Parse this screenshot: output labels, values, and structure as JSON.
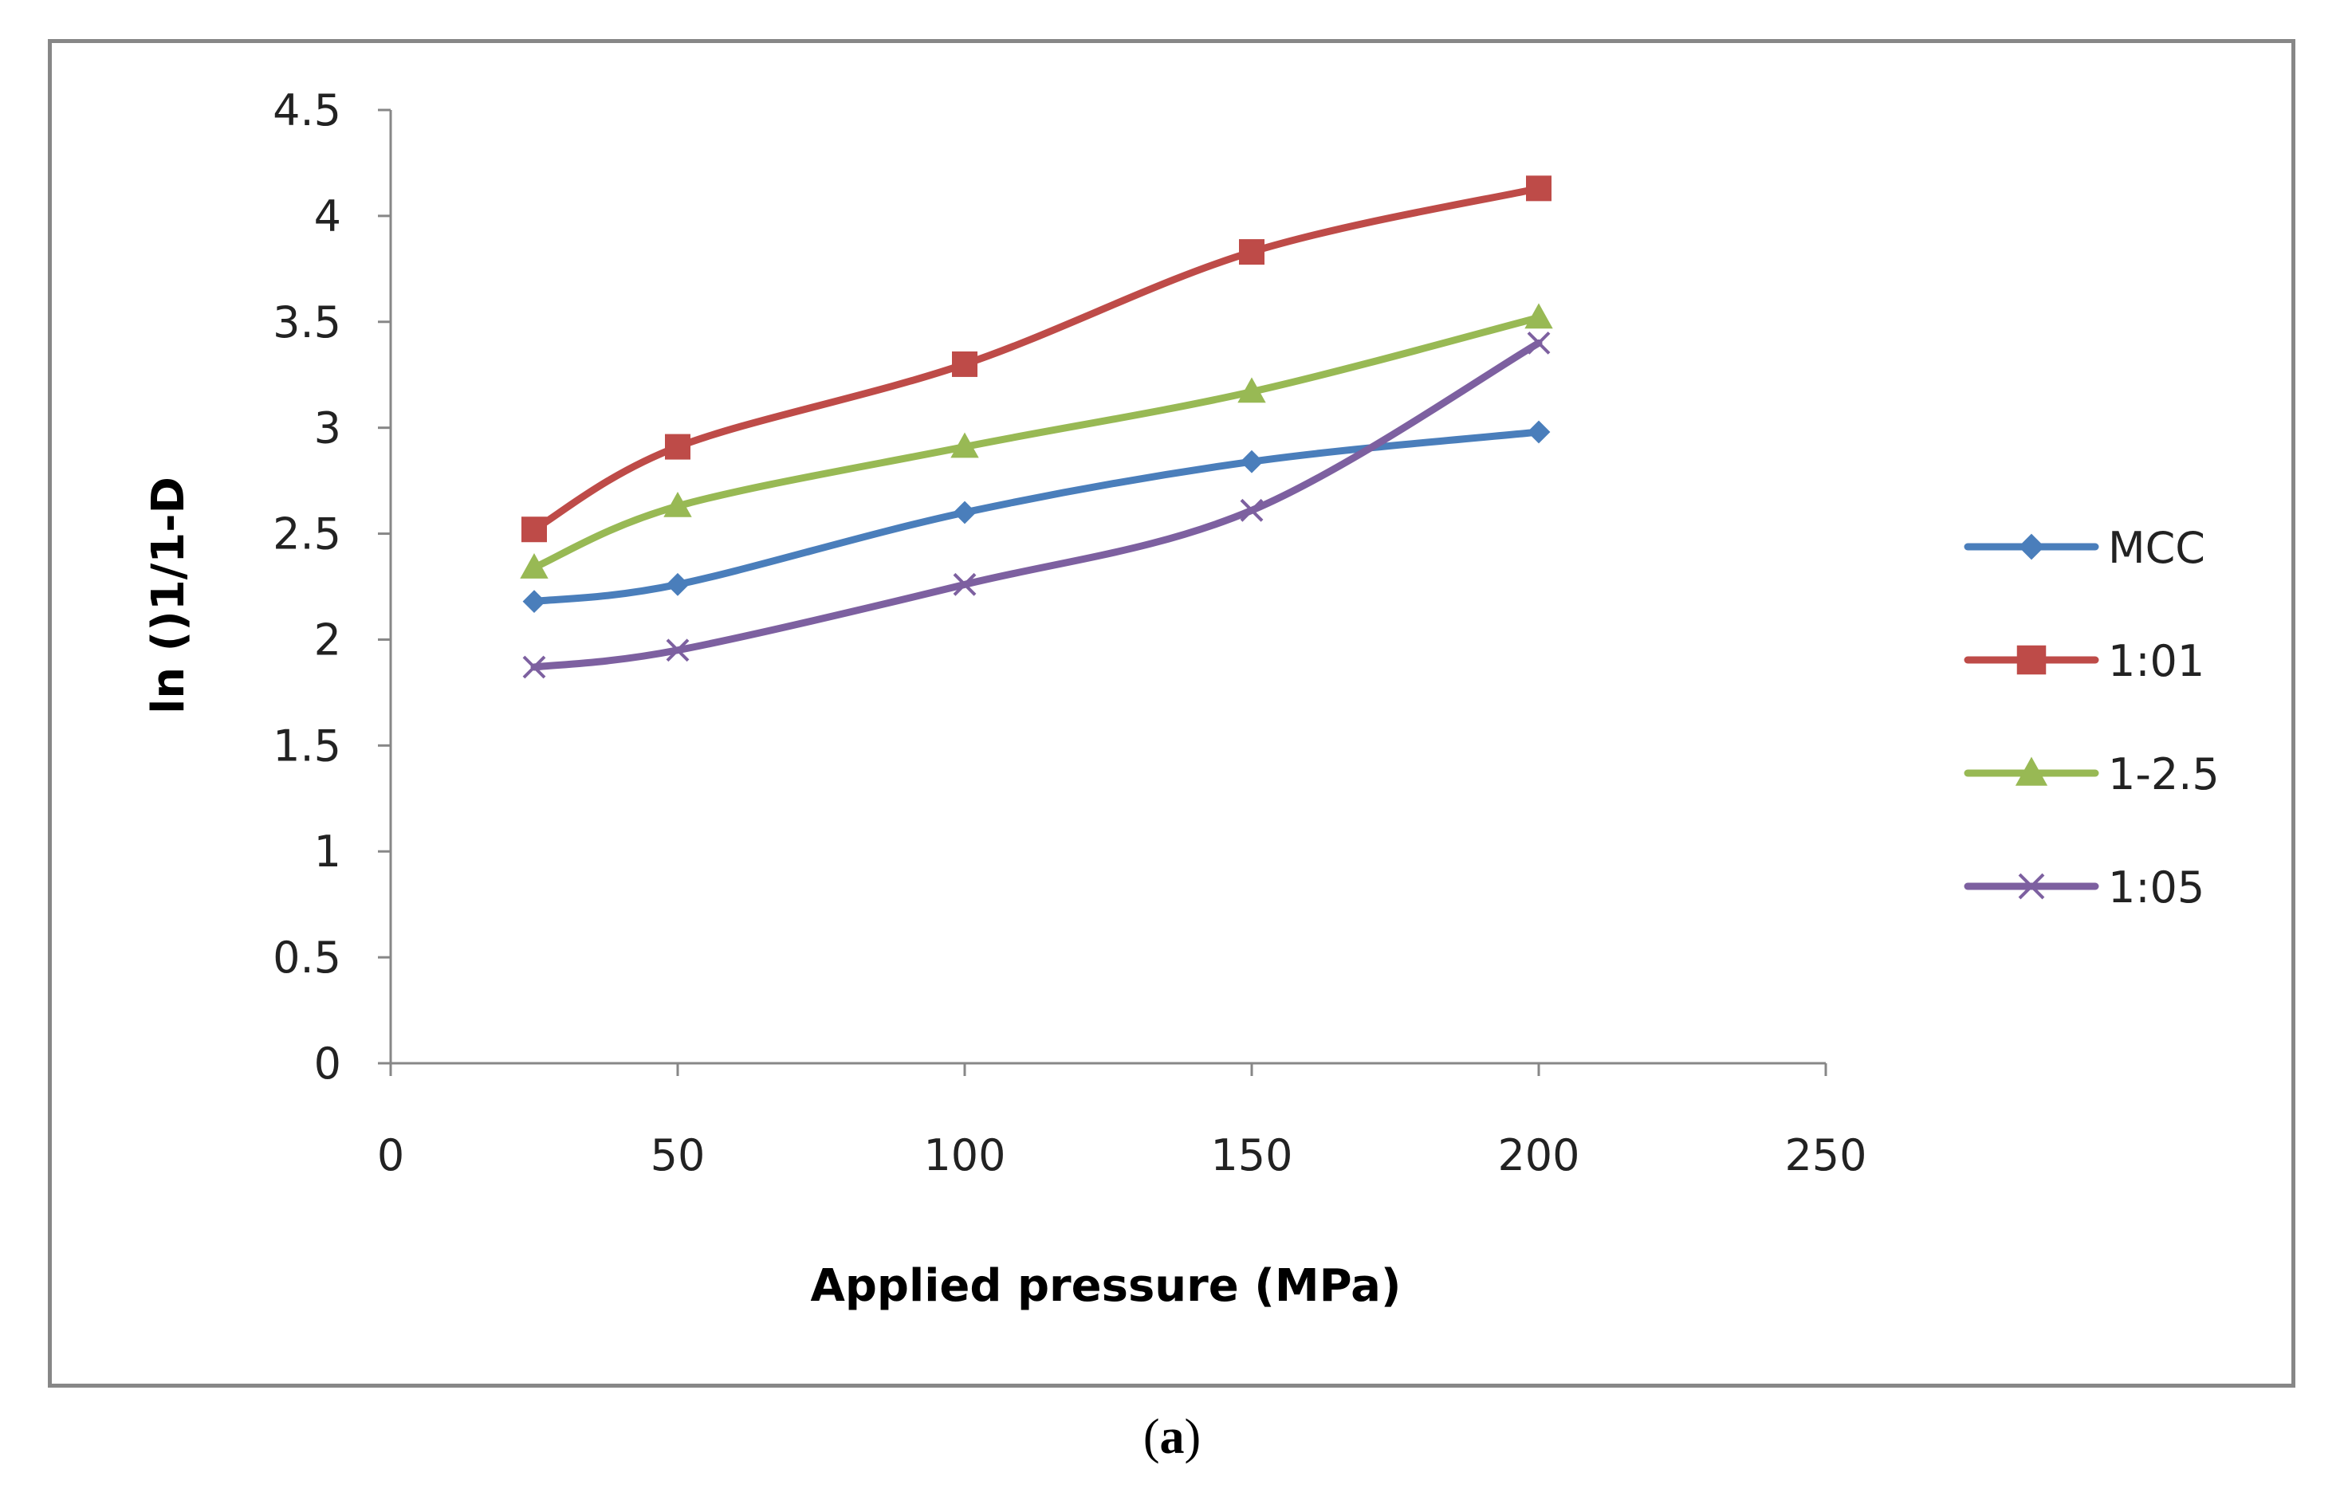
{
  "chart_data": {
    "type": "line",
    "title": "",
    "xlabel": "Applied pressure (MPa)",
    "ylabel": "ln ()1/1-D",
    "xlim": [
      0,
      250
    ],
    "ylim": [
      0,
      4.5
    ],
    "x_ticks": [
      "0",
      "50",
      "100",
      "150",
      "200",
      "250"
    ],
    "y_ticks": [
      "0",
      "0.5",
      "1",
      "1.5",
      "2",
      "2.5",
      "3",
      "3.5",
      "4",
      "4.5"
    ],
    "x": [
      25,
      50,
      100,
      150,
      200
    ],
    "legend_position": "right",
    "grid": false,
    "series": [
      {
        "name": "MCC",
        "color": "#4A7EBB",
        "marker": "diamond",
        "values": [
          2.18,
          2.26,
          2.6,
          2.84,
          2.98
        ]
      },
      {
        "name": "1:01",
        "color": "#BE4B48",
        "marker": "square",
        "values": [
          2.52,
          2.91,
          3.3,
          3.83,
          4.13
        ]
      },
      {
        "name": "1-2.5",
        "color": "#98B954",
        "marker": "triangle",
        "values": [
          2.34,
          2.63,
          2.91,
          3.17,
          3.52
        ]
      },
      {
        "name": "1:05",
        "color": "#7D60A0",
        "marker": "x",
        "values": [
          1.87,
          1.95,
          2.26,
          2.61,
          3.4
        ]
      }
    ]
  },
  "caption": {
    "open": "(",
    "letter": "a",
    "close": ")"
  }
}
